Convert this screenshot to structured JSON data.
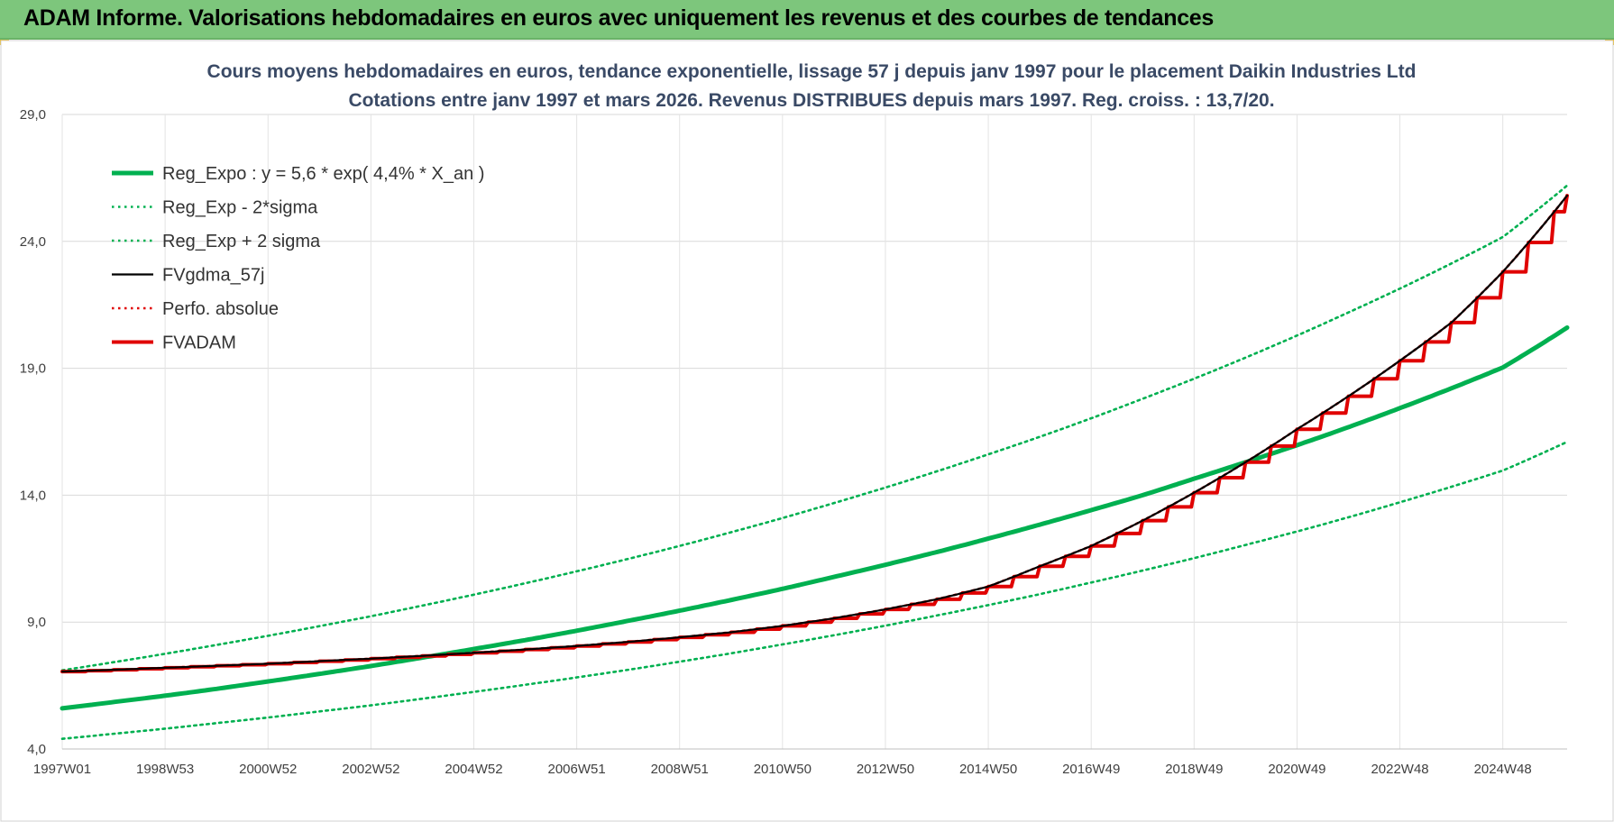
{
  "banner": {
    "title": "ADAM Informe. Valorisations hebdomadaires en euros avec uniquement les revenus et des courbes de tendances"
  },
  "chart_data": {
    "type": "line",
    "title": "Cours moyens hebdomadaires en euros, tendance exponentielle, lissage 57 j depuis janv 1997 pour le placement Daikin Industries Ltd",
    "subtitle": "Cotations entre janv 1997 et mars 2026. Revenus DISTRIBUES depuis mars 1997. Reg. croiss. : 13,7/20.",
    "xlabel": "",
    "ylabel": "",
    "x_tick_labels": [
      "1997W01",
      "1998W53",
      "2000W52",
      "2002W52",
      "2004W52",
      "2006W51",
      "2008W51",
      "2010W50",
      "2012W50",
      "2014W50",
      "2016W49",
      "2018W49",
      "2020W49",
      "2022W48",
      "2024W48"
    ],
    "x_tick_years": [
      1997,
      1999,
      2001,
      2003,
      2005,
      2007,
      2009,
      2011,
      2013,
      2015,
      2017,
      2019,
      2021,
      2023,
      2025
    ],
    "x_range": [
      1997.0,
      2026.25
    ],
    "y_tick_labels": [
      "4,0",
      "9,0",
      "14,0",
      "19,0",
      "24,0",
      "29,0"
    ],
    "y_ticks": [
      4,
      9,
      14,
      19,
      24,
      29
    ],
    "ylim": [
      4,
      29
    ],
    "grid": true,
    "legend_position": "top-left",
    "x_years": [
      1997,
      1998,
      1999,
      2000,
      2001,
      2002,
      2003,
      2004,
      2005,
      2006,
      2007,
      2008,
      2009,
      2010,
      2011,
      2012,
      2013,
      2014,
      2015,
      2016,
      2017,
      2018,
      2019,
      2020,
      2021,
      2022,
      2023,
      2024,
      2025,
      2026.25
    ],
    "series": [
      {
        "name": "Reg_Expo : y = 5,6 * exp( 4,4% *  X_an )",
        "color": "#00b050",
        "style": "solid-thick",
        "values": [
          5.6,
          5.85,
          6.1,
          6.37,
          6.66,
          6.96,
          7.27,
          7.6,
          7.94,
          8.29,
          8.66,
          9.05,
          9.45,
          9.87,
          10.31,
          10.78,
          11.26,
          11.76,
          12.29,
          12.84,
          13.41,
          14.0,
          14.65,
          15.3,
          15.97,
          16.68,
          17.43,
          18.21,
          19.03,
          20.6
        ]
      },
      {
        "name": "Reg_Exp - 2*sigma",
        "color": "#00b050",
        "style": "dotted",
        "values": [
          4.4,
          4.6,
          4.8,
          5.02,
          5.24,
          5.48,
          5.72,
          5.98,
          6.25,
          6.53,
          6.82,
          7.12,
          7.44,
          7.77,
          8.12,
          8.48,
          8.86,
          9.26,
          9.67,
          10.1,
          10.56,
          11.03,
          11.52,
          12.04,
          12.57,
          13.13,
          13.72,
          14.33,
          14.97,
          16.1
        ]
      },
      {
        "name": "Reg_Exp + 2 sigma",
        "color": "#00b050",
        "style": "dotted",
        "values": [
          7.1,
          7.42,
          7.75,
          8.1,
          8.46,
          8.84,
          9.23,
          9.65,
          10.08,
          10.53,
          11.0,
          11.49,
          12.0,
          12.54,
          13.1,
          13.69,
          14.3,
          14.94,
          15.61,
          16.3,
          17.03,
          17.8,
          18.59,
          19.42,
          20.29,
          21.2,
          22.14,
          23.13,
          24.17,
          26.2
        ]
      },
      {
        "name": "FVgdma_57j",
        "color": "#000000",
        "style": "solid",
        "values": [
          7.05,
          7.12,
          7.2,
          7.28,
          7.36,
          7.46,
          7.56,
          7.67,
          7.79,
          7.92,
          8.06,
          8.22,
          8.4,
          8.6,
          8.85,
          9.15,
          9.5,
          9.9,
          10.4,
          11.2,
          12.0,
          13.0,
          14.1,
          15.3,
          16.6,
          17.9,
          19.3,
          20.8,
          22.8,
          25.8
        ]
      },
      {
        "name": "Perfo. absolue",
        "color": "#e00000",
        "style": "dotted",
        "values": [
          7.05,
          7.12,
          7.2,
          7.28,
          7.36,
          7.46,
          7.56,
          7.67,
          7.79,
          7.92,
          8.06,
          8.22,
          8.4,
          8.6,
          8.85,
          9.15,
          9.5,
          9.9,
          10.4,
          11.2,
          12.0,
          13.0,
          14.1,
          15.3,
          16.6,
          17.9,
          19.3,
          20.8,
          22.8,
          25.8
        ]
      },
      {
        "name": "FVADAM",
        "color": "#e00000",
        "style": "step-thick",
        "values": [
          7.05,
          7.12,
          7.2,
          7.28,
          7.36,
          7.46,
          7.56,
          7.67,
          7.79,
          7.92,
          8.06,
          8.22,
          8.4,
          8.6,
          8.85,
          9.15,
          9.5,
          9.9,
          10.4,
          11.2,
          12.0,
          13.0,
          14.1,
          15.3,
          16.6,
          17.9,
          19.3,
          20.8,
          22.8,
          25.8
        ]
      }
    ]
  }
}
